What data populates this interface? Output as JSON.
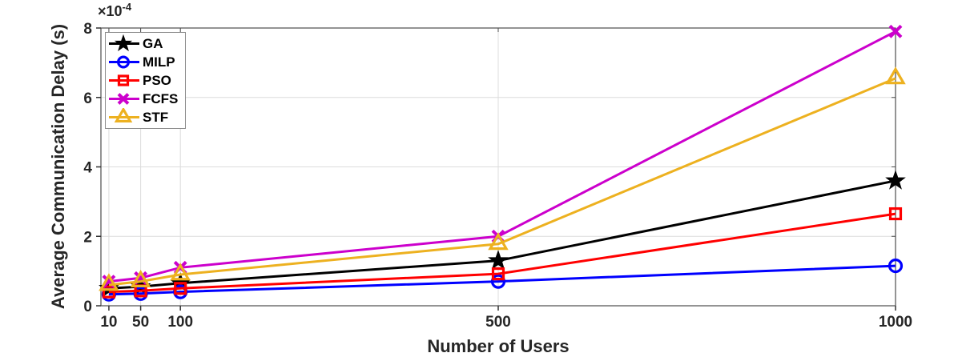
{
  "figure": {
    "background": "#ffffff",
    "text_color": "#262626",
    "box_color": "#4d4d4d",
    "grid_color": "#dcdcdc",
    "tick_color": "#333333"
  },
  "chart_data": {
    "type": "line",
    "title": "",
    "xlabel": "Number of Users",
    "ylabel": "Average Communication Delay (s)",
    "y_offset": {
      "base": "×10",
      "exponent": "-4"
    },
    "y_multiplier": 0.0001,
    "x": [
      10,
      50,
      100,
      500,
      1000
    ],
    "xticks": [
      10,
      50,
      100,
      500,
      1000
    ],
    "yticks": [
      0,
      2,
      4,
      6,
      8
    ],
    "xlim": [
      0,
      1000
    ],
    "ylim": [
      0,
      8
    ],
    "grid": true,
    "legend_position": "top-left",
    "series": [
      {
        "name": "GA",
        "color": "#000000",
        "marker": "star",
        "values": [
          0.5,
          0.55,
          0.65,
          1.3,
          3.6
        ]
      },
      {
        "name": "MILP",
        "color": "#0000ff",
        "marker": "circle",
        "values": [
          0.33,
          0.35,
          0.4,
          0.7,
          1.15
        ]
      },
      {
        "name": "PSO",
        "color": "#ff0000",
        "marker": "square",
        "values": [
          0.4,
          0.43,
          0.5,
          0.92,
          2.65
        ]
      },
      {
        "name": "FCFS",
        "color": "#cc00cc",
        "marker": "x",
        "values": [
          0.7,
          0.8,
          1.1,
          2.0,
          7.9
        ]
      },
      {
        "name": "STF",
        "color": "#edb120",
        "marker": "triangle",
        "values": [
          0.6,
          0.7,
          0.9,
          1.78,
          6.55
        ]
      }
    ]
  }
}
